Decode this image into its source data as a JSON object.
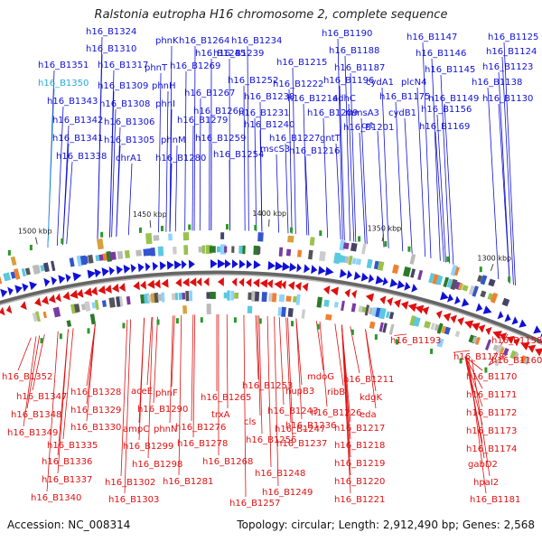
{
  "header": {
    "title": "Ralstonia eutropha H16 chromosome 2, complete sequence"
  },
  "footer": {
    "accession": "Accession: NC_008314",
    "stats": "Topology: circular; Length: 2,912,490 bp; Genes: 2,568"
  },
  "colors": {
    "forward": "#1010d8",
    "reverse": "#e01010",
    "highlight": "#22aadd",
    "backbone": "#888888"
  },
  "ticks": [
    "1500 kbp",
    "1450 kbp",
    "1400 kbp",
    "1350 kbp",
    "1300 kbp"
  ],
  "forward_genes": [
    "h16_B1324",
    "h16_B1310",
    "h16_B1351",
    "h16_B1317",
    "h16_B1350",
    "h16_B1309",
    "h16_B1343",
    "h16_B1308",
    "h16_B1342",
    "h16_B1306",
    "h16_B1341",
    "h16_B1305",
    "h16_B1338",
    "chrA1",
    "phnK",
    "phnT",
    "phnH",
    "phnI",
    "phnM",
    "h16_B1280",
    "h16_B1264",
    "h16_B1245",
    "h16_B1269",
    "h16_B1267",
    "h16_B1279",
    "h16_B1260",
    "h16_B1259",
    "h16_B1254",
    "h16_B1234",
    "h16_B1239",
    "h16_B1252",
    "h16_B1238",
    "h16_B1231",
    "h16_B1240",
    "mscS3",
    "h16_B1227",
    "h16_B1215",
    "h16_B1222",
    "h16_B1214",
    "h16_B1216",
    "h16_B1190",
    "h16_B1188",
    "h16_B1187",
    "h16_B1196",
    "h16_B1209",
    "gntT",
    "adhC",
    "mmsA3",
    "h16_B1201",
    "crt",
    "h16_B1147",
    "h16_B1125",
    "h16_B1146",
    "h16_B1124",
    "h16_B1145",
    "h16_B1123",
    "cydA1",
    "plcN4",
    "h16_B1175",
    "h16_B1138",
    "cydB1",
    "h16_B1149",
    "h16_B1156",
    "h16_B1169",
    "h16_B1130"
  ],
  "reverse_genes": [
    "h16_B1352",
    "h16_B1347",
    "h16_B1328",
    "h16_B1348",
    "h16_B1329",
    "h16_B1349",
    "h16_B1330",
    "h16_B1335",
    "h16_B1336",
    "h16_B1337",
    "h16_B1340",
    "aceE",
    "phnF",
    "h16_B1290",
    "ampC",
    "phnN",
    "h16_B1299",
    "h16_B1298",
    "h16_B1302",
    "h16_B1303",
    "h16_B1276",
    "h16_B1278",
    "h16_B1281",
    "h16_B1265",
    "h16_B1268",
    "trxA",
    "h16_B1253",
    "cls",
    "h16_B1256",
    "h16_B1257",
    "h16_B1243",
    "h16_B1247",
    "h16_B1248",
    "h16_B1249",
    "hupB3",
    "h16_B1236",
    "h16_B1237",
    "mdoG",
    "ribB",
    "h16_B1226",
    "h16_B1211",
    "kdgK",
    "eda",
    "h16_B1217",
    "h16_B1218",
    "h16_B1219",
    "h16_B1220",
    "h16_B1221",
    "h16_B1193",
    "h16_B1178",
    "h16_B1158",
    "h16_B1160",
    "h16_B1170",
    "h16_B1171",
    "h16_B1172",
    "h16_B1173",
    "h16_B1174",
    "gabD2",
    "hpaI2",
    "h16_B1181"
  ]
}
